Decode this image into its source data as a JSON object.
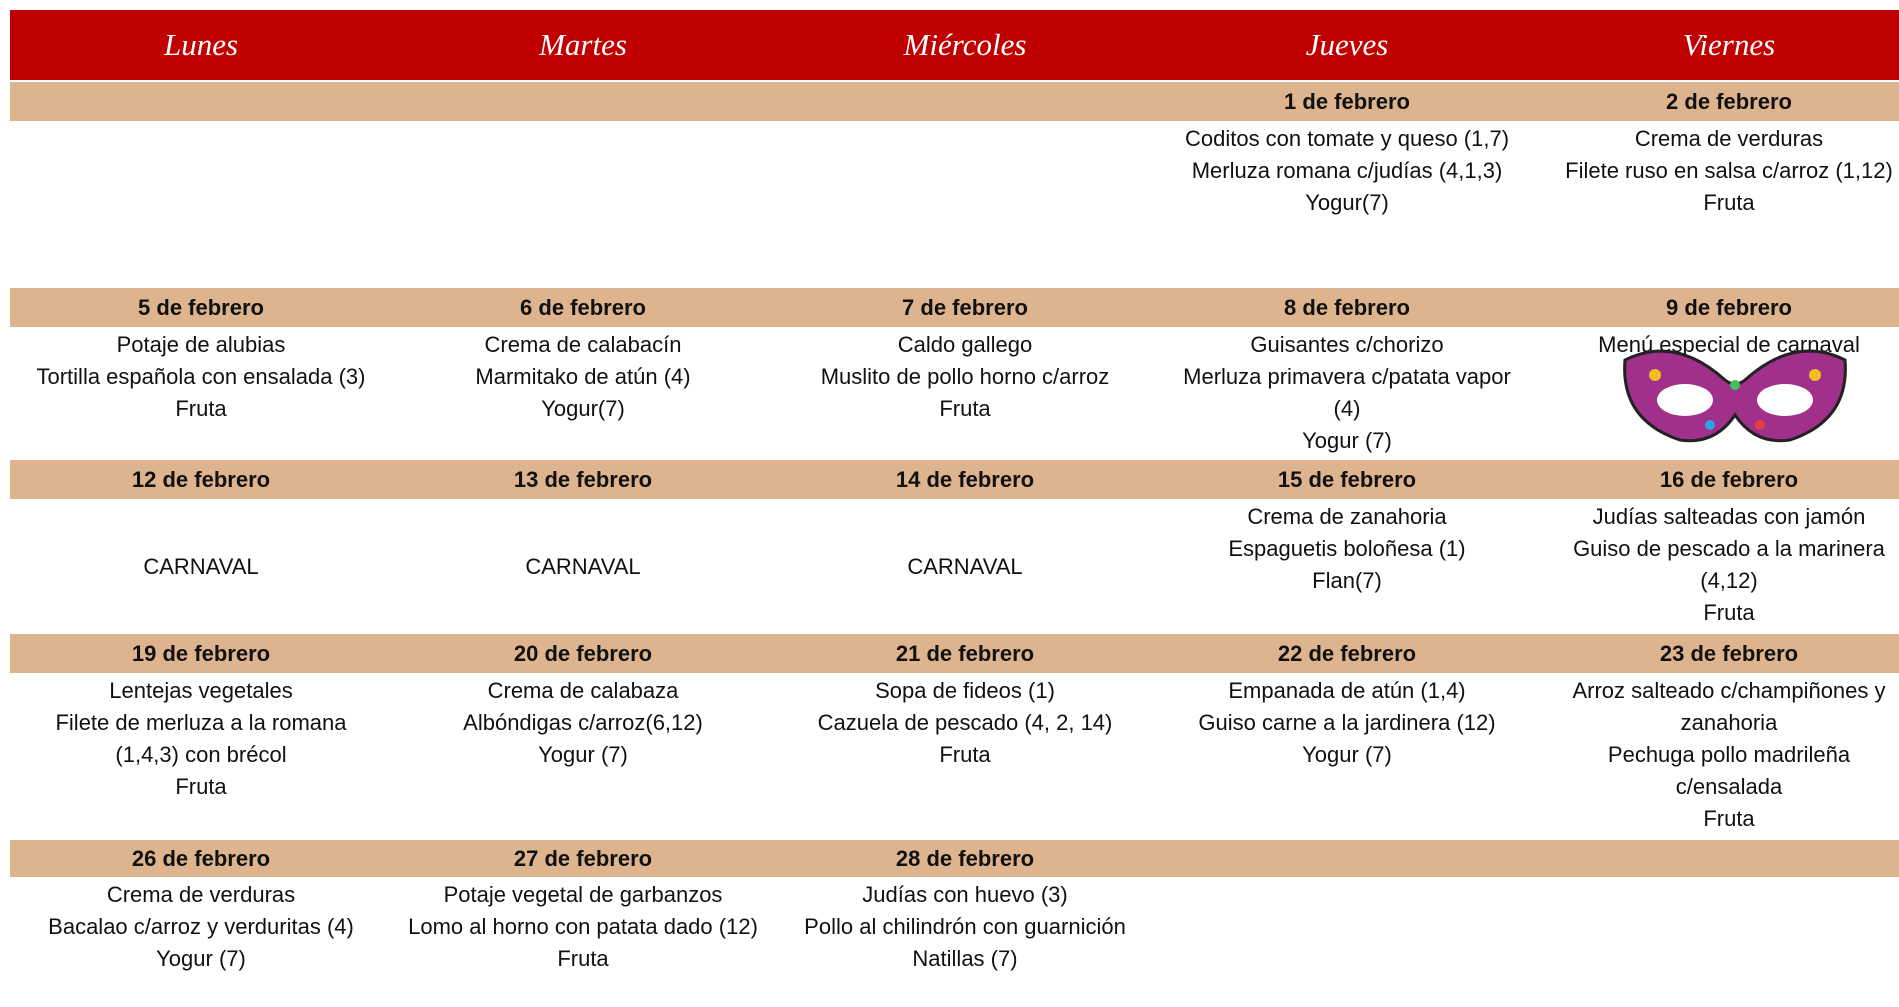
{
  "header": {
    "days": [
      "Lunes",
      "Martes",
      "Miércoles",
      "Jueves",
      "Viernes"
    ]
  },
  "weeks": [
    {
      "days": [
        null,
        null,
        null,
        {
          "date": "1 de febrero",
          "items": [
            "Coditos con tomate y queso (1,7)",
            "Merluza  romana c/judías (4,1,3)",
            "Yogur(7)"
          ]
        },
        {
          "date": "2 de febrero",
          "items": [
            "Crema de verduras",
            "Filete ruso en salsa c/arroz (1,12)",
            "Fruta"
          ]
        }
      ]
    },
    {
      "days": [
        {
          "date": "5 de febrero",
          "items": [
            "Potaje de alubias",
            "Tortilla española con ensalada (3)",
            "Fruta"
          ]
        },
        {
          "date": "6 de febrero",
          "items": [
            "Crema de calabacín",
            "Marmitako de atún (4)",
            "Yogur(7)"
          ]
        },
        {
          "date": "7 de febrero",
          "items": [
            "Caldo gallego",
            "Muslito de pollo  horno c/arroz",
            "Fruta"
          ]
        },
        {
          "date": "8 de febrero",
          "items": [
            "Guisantes c/chorizo",
            "Merluza primavera c/patata vapor (4)",
            "Yogur (7)"
          ]
        },
        {
          "date": "9 de febrero",
          "items": [
            "Menú especial de carnaval"
          ]
        }
      ]
    },
    {
      "days": [
        {
          "date": "12 de febrero",
          "items": [
            "CARNAVAL"
          ]
        },
        {
          "date": "13 de febrero",
          "items": [
            "CARNAVAL"
          ]
        },
        {
          "date": "14 de febrero",
          "items": [
            "CARNAVAL"
          ]
        },
        {
          "date": "15 de febrero",
          "items": [
            "Crema de zanahoria",
            "Espaguetis  boloñesa (1)",
            "Flan(7)"
          ]
        },
        {
          "date": "16 de febrero",
          "items": [
            "Judías salteadas con jamón",
            "Guiso de pescado a la marinera (4,12)",
            "Fruta"
          ]
        }
      ]
    },
    {
      "days": [
        {
          "date": "19 de febrero",
          "items": [
            "Lentejas vegetales",
            "Filete de merluza a la romana (1,4,3) con brécol",
            "Fruta"
          ]
        },
        {
          "date": "20 de febrero",
          "items": [
            "Crema de calabaza",
            "Albóndigas c/arroz(6,12)",
            "Yogur (7)"
          ]
        },
        {
          "date": "21 de febrero",
          "items": [
            "Sopa de fideos (1)",
            "Cazuela de pescado (4, 2, 14)",
            "Fruta"
          ]
        },
        {
          "date": "22 de febrero",
          "items": [
            "Empanada de atún (1,4)",
            "Guiso carne a la jardinera (12)",
            "Yogur (7)"
          ]
        },
        {
          "date": "23 de febrero",
          "items": [
            "Arroz salteado c/champiñones y zanahoria",
            "Pechuga pollo madrileña c/ensalada",
            "Fruta"
          ]
        }
      ]
    },
    {
      "days": [
        {
          "date": "26 de febrero",
          "items": [
            "Crema de verduras",
            "Bacalao c/arroz y verduritas (4)",
            "Yogur (7)"
          ]
        },
        {
          "date": "27 de febrero",
          "items": [
            "Potaje vegetal de garbanzos",
            "Lomo al horno con patata dado (12)",
            "Fruta"
          ]
        },
        {
          "date": "28 de febrero",
          "items": [
            "Judías con huevo (3)",
            "Pollo al chilindrón con guarnición",
            "Natillas (7)"
          ]
        },
        null,
        null
      ]
    }
  ]
}
